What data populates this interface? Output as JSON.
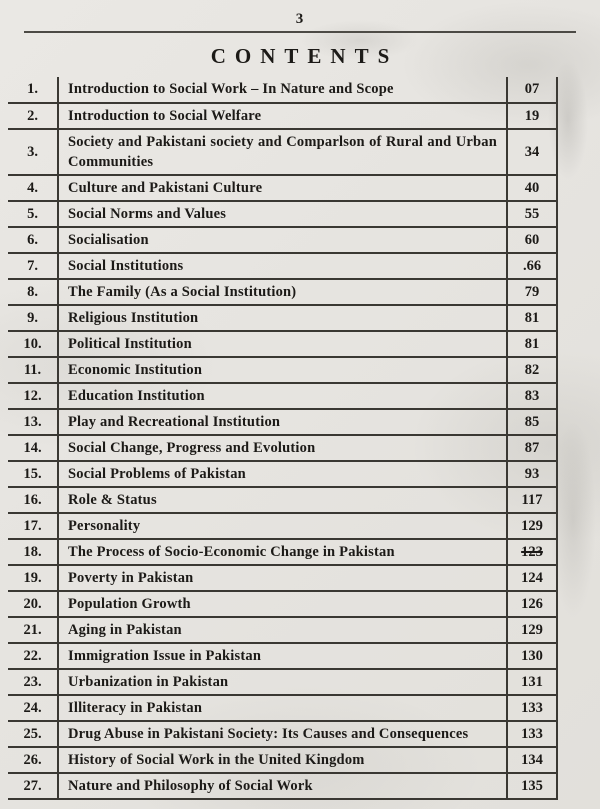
{
  "page": {
    "page_number": "3",
    "title": "CONTENTS"
  },
  "colors": {
    "paper": "#e6e4e0",
    "ink": "#1c1a17",
    "table_border": "#3a3833"
  },
  "toc": {
    "rows": [
      {
        "num": "1.",
        "title": "Introduction to Social Work – In Nature and Scope",
        "page": "07"
      },
      {
        "num": "2.",
        "title": "Introduction to Social Welfare",
        "page": "19"
      },
      {
        "num": "3.",
        "title": "Society and Pakistani society and Comparlson of Rural and Urban Communities",
        "page": "34"
      },
      {
        "num": "4.",
        "title": "Culture and Pakistani Culture",
        "page": "40"
      },
      {
        "num": "5.",
        "title": "Social Norms and Values",
        "page": "55"
      },
      {
        "num": "6.",
        "title": "Socialisation",
        "page": "60"
      },
      {
        "num": "7.",
        "title": "Social Institutions",
        "page": ".66"
      },
      {
        "num": "8.",
        "title": "The Family (As a Social Institution)",
        "page": "79"
      },
      {
        "num": "9.",
        "title": "Religious Institution",
        "page": "81"
      },
      {
        "num": "10.",
        "title": "Political Institution",
        "page": "81"
      },
      {
        "num": "11.",
        "title": "Economic Institution",
        "page": "82"
      },
      {
        "num": "12.",
        "title": "Education Institution",
        "page": "83"
      },
      {
        "num": "13.",
        "title": "Play and Recreational Institution",
        "page": "85"
      },
      {
        "num": "14.",
        "title": "Social Change, Progress and Evolution",
        "page": "87"
      },
      {
        "num": "15.",
        "title": "Social Problems of Pakistan",
        "page": "93"
      },
      {
        "num": "16.",
        "title": "Role & Status",
        "page": "117"
      },
      {
        "num": "17.",
        "title": "Personality",
        "page": "129"
      },
      {
        "num": "18.",
        "title": "The Process of Socio-Economic Change in Pakistan",
        "page": "123",
        "struck": true
      },
      {
        "num": "19.",
        "title": "Poverty in Pakistan",
        "page": "124"
      },
      {
        "num": "20.",
        "title": "Population Growth",
        "page": "126"
      },
      {
        "num": "21.",
        "title": "Aging in Pakistan",
        "page": "129"
      },
      {
        "num": "22.",
        "title": "Immigration Issue in Pakistan",
        "page": "130"
      },
      {
        "num": "23.",
        "title": "Urbanization in Pakistan",
        "page": "131"
      },
      {
        "num": "24.",
        "title": "Illiteracy in Pakistan",
        "page": "133"
      },
      {
        "num": "25.",
        "title": "Drug Abuse in Pakistani Society: Its Causes and Consequences",
        "page": "133"
      },
      {
        "num": "26.",
        "title": "History of Social Work in the United Kingdom",
        "page": "134"
      },
      {
        "num": "27.",
        "title": "Nature and Philosophy of Social Work",
        "page": "135"
      }
    ]
  }
}
